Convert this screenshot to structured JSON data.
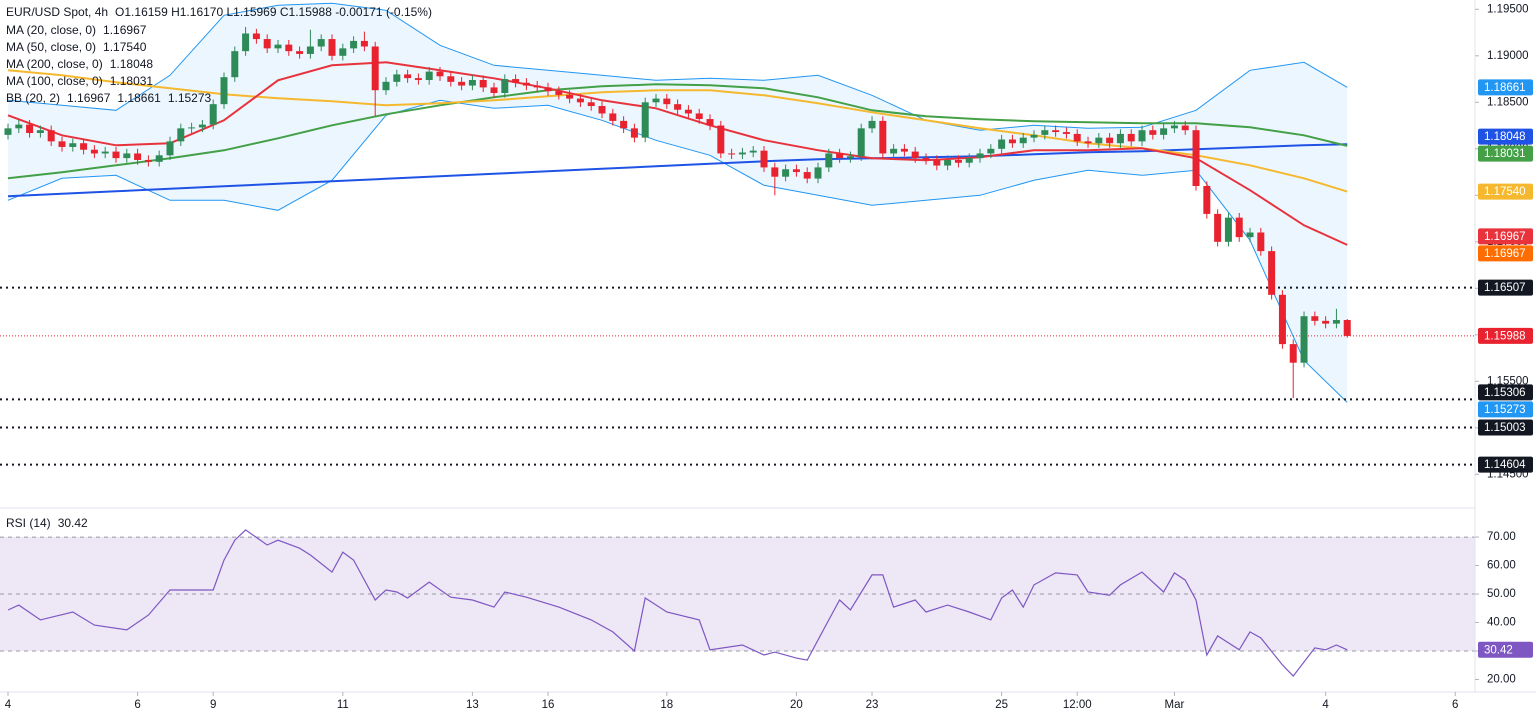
{
  "chart_data": {
    "type": "candlestick",
    "header": {
      "symbol": "EUR/USD Spot, 4h",
      "ohlc": "O1.16159  H1.16170  L1.15969  C1.15988  -0.00171 (-0.15%)"
    },
    "xlim": [
      -0.74,
      135.83
    ],
    "xticks": [
      {
        "value": 0,
        "label": "4"
      },
      {
        "value": 12,
        "label": "6"
      },
      {
        "value": 19,
        "label": "9"
      },
      {
        "value": 31,
        "label": "11"
      },
      {
        "value": 43,
        "label": "13"
      },
      {
        "value": 50,
        "label": "16"
      },
      {
        "value": 61,
        "label": "18"
      },
      {
        "value": 73,
        "label": "20"
      },
      {
        "value": 80,
        "label": "23"
      },
      {
        "value": 92,
        "label": "25"
      },
      {
        "value": 99,
        "label": "12:00"
      },
      {
        "value": 108,
        "label": "Mar"
      },
      {
        "value": 122,
        "label": "4"
      },
      {
        "value": 134,
        "label": "6"
      }
    ],
    "ylim": [
      1.1417,
      1.196
    ],
    "yticks": [
      {
        "value": 1.145,
        "label": "1.14500"
      },
      {
        "value": 1.15,
        "label": "1.15000"
      },
      {
        "value": 1.155,
        "label": "1.15500"
      },
      {
        "value": 1.16,
        "label": "1.16000"
      },
      {
        "value": 1.165,
        "label": "1.16500"
      },
      {
        "value": 1.17,
        "label": "1.17000"
      },
      {
        "value": 1.175,
        "label": "1.17500"
      },
      {
        "value": 1.18,
        "label": "1.18000"
      },
      {
        "value": 1.185,
        "label": "1.18500"
      },
      {
        "value": 1.19,
        "label": "1.19000"
      },
      {
        "value": 1.195,
        "label": "1.19500"
      }
    ],
    "candles": {
      "up_color": "#2e8b57",
      "down_color": "#e8232f",
      "open": [
        1.1815,
        1.1822,
        1.1826,
        1.1817,
        1.182,
        1.1808,
        1.1802,
        1.1806,
        1.1799,
        1.1795,
        1.1797,
        1.179,
        1.1795,
        1.1788,
        1.1786,
        1.1793,
        1.1808,
        1.1822,
        1.1823,
        1.1826,
        1.1848,
        1.1877,
        1.1905,
        1.1924,
        1.1918,
        1.1908,
        1.1912,
        1.1905,
        1.1902,
        1.191,
        1.1918,
        1.19,
        1.1908,
        1.1916,
        1.191,
        1.1863,
        1.1872,
        1.188,
        1.1876,
        1.1874,
        1.1883,
        1.1878,
        1.1872,
        1.1868,
        1.1874,
        1.1866,
        1.186,
        1.1875,
        1.1871,
        1.1868,
        1.1866,
        1.1862,
        1.1858,
        1.1854,
        1.185,
        1.1846,
        1.1838,
        1.183,
        1.1822,
        1.1812,
        1.185,
        1.1854,
        1.1848,
        1.1842,
        1.1838,
        1.1832,
        1.1825,
        1.1795,
        1.1794,
        1.1796,
        1.1798,
        1.178,
        1.177,
        1.1778,
        1.1775,
        1.1768,
        1.178,
        1.1795,
        1.179,
        1.1792,
        1.1822,
        1.183,
        1.1795,
        1.18,
        1.1797,
        1.179,
        1.1788,
        1.1782,
        1.1788,
        1.1785,
        1.179,
        1.1795,
        1.18,
        1.181,
        1.1806,
        1.1812,
        1.1815,
        1.182,
        1.1818,
        1.1816,
        1.1808,
        1.1806,
        1.1812,
        1.1806,
        1.1816,
        1.1808,
        1.182,
        1.1815,
        1.1822,
        1.1825,
        1.182,
        1.176,
        1.173,
        1.17,
        1.1726,
        1.1705,
        1.171,
        1.169,
        1.1643,
        1.159,
        1.157,
        1.162,
        1.1615,
        1.1612,
        1.16159
      ],
      "high": [
        1.1827,
        1.1831,
        1.1831,
        1.1825,
        1.1825,
        1.1813,
        1.1811,
        1.1811,
        1.1804,
        1.1802,
        1.1802,
        1.18,
        1.18,
        1.1793,
        1.1798,
        1.1813,
        1.1827,
        1.1828,
        1.1831,
        1.1853,
        1.1882,
        1.191,
        1.1931,
        1.1929,
        1.1923,
        1.1917,
        1.1917,
        1.191,
        1.1928,
        1.1923,
        1.1923,
        1.1913,
        1.1921,
        1.1926,
        1.1915,
        1.1877,
        1.1885,
        1.1885,
        1.1881,
        1.1888,
        1.1888,
        1.1883,
        1.1877,
        1.1879,
        1.1879,
        1.1871,
        1.188,
        1.188,
        1.1876,
        1.1873,
        1.1871,
        1.1867,
        1.1863,
        1.1859,
        1.1855,
        1.1851,
        1.1843,
        1.1835,
        1.1827,
        1.1855,
        1.1859,
        1.1859,
        1.1853,
        1.1847,
        1.1843,
        1.1837,
        1.183,
        1.18,
        1.1801,
        1.1803,
        1.1803,
        1.1785,
        1.1783,
        1.1783,
        1.178,
        1.1785,
        1.18,
        1.18,
        1.1797,
        1.1827,
        1.1835,
        1.1835,
        1.1805,
        1.1805,
        1.1802,
        1.1795,
        1.1793,
        1.1793,
        1.1793,
        1.1795,
        1.18,
        1.1805,
        1.1815,
        1.1815,
        1.1817,
        1.182,
        1.1825,
        1.1825,
        1.1823,
        1.1821,
        1.1813,
        1.1817,
        1.1817,
        1.1821,
        1.1821,
        1.1825,
        1.1825,
        1.1827,
        1.183,
        1.183,
        1.1825,
        1.1765,
        1.1735,
        1.1731,
        1.1731,
        1.1715,
        1.1715,
        1.1695,
        1.1648,
        1.1595,
        1.1625,
        1.1625,
        1.162,
        1.1628,
        1.1617
      ],
      "low": [
        1.181,
        1.1817,
        1.1812,
        1.1812,
        1.1803,
        1.1797,
        1.1797,
        1.1794,
        1.179,
        1.179,
        1.1785,
        1.1785,
        1.1783,
        1.1781,
        1.1781,
        1.1788,
        1.1803,
        1.1817,
        1.1818,
        1.1821,
        1.1843,
        1.1872,
        1.19,
        1.1913,
        1.1903,
        1.1903,
        1.19,
        1.1897,
        1.1897,
        1.1905,
        1.1895,
        1.1895,
        1.1903,
        1.1905,
        1.1835,
        1.1858,
        1.1867,
        1.1871,
        1.1869,
        1.1869,
        1.1873,
        1.1867,
        1.1863,
        1.1863,
        1.1861,
        1.1855,
        1.1855,
        1.1866,
        1.1863,
        1.1861,
        1.1857,
        1.1853,
        1.1849,
        1.1845,
        1.1841,
        1.1833,
        1.1825,
        1.1817,
        1.1807,
        1.1807,
        1.1845,
        1.1843,
        1.1837,
        1.1833,
        1.1827,
        1.182,
        1.179,
        1.1789,
        1.1789,
        1.1791,
        1.1775,
        1.175,
        1.1765,
        1.177,
        1.1763,
        1.1763,
        1.1775,
        1.1785,
        1.1785,
        1.1787,
        1.1817,
        1.179,
        1.179,
        1.1792,
        1.1785,
        1.1783,
        1.1777,
        1.1777,
        1.178,
        1.178,
        1.1785,
        1.179,
        1.1795,
        1.1801,
        1.1801,
        1.1807,
        1.181,
        1.1813,
        1.1811,
        1.1803,
        1.1801,
        1.1801,
        1.1801,
        1.1801,
        1.1803,
        1.1803,
        1.181,
        1.181,
        1.1817,
        1.1815,
        1.1755,
        1.1725,
        1.1695,
        1.1695,
        1.17,
        1.17,
        1.1685,
        1.1638,
        1.1585,
        1.1532,
        1.1565,
        1.161,
        1.1607,
        1.1607,
        1.15969
      ],
      "close": [
        1.1822,
        1.1826,
        1.1817,
        1.182,
        1.1808,
        1.1802,
        1.1806,
        1.1799,
        1.1795,
        1.1797,
        1.179,
        1.1795,
        1.1788,
        1.1786,
        1.1793,
        1.1808,
        1.1822,
        1.1823,
        1.1826,
        1.1848,
        1.1877,
        1.1905,
        1.1924,
        1.1918,
        1.1908,
        1.1912,
        1.1905,
        1.1902,
        1.191,
        1.1918,
        1.19,
        1.1908,
        1.1916,
        1.191,
        1.1863,
        1.1872,
        1.188,
        1.1876,
        1.1874,
        1.1883,
        1.1878,
        1.1872,
        1.1868,
        1.1874,
        1.1866,
        1.186,
        1.1875,
        1.1871,
        1.1868,
        1.1866,
        1.1862,
        1.1858,
        1.1854,
        1.185,
        1.1846,
        1.1838,
        1.183,
        1.1822,
        1.1812,
        1.185,
        1.1854,
        1.1848,
        1.1842,
        1.1838,
        1.1832,
        1.1825,
        1.1795,
        1.1794,
        1.1796,
        1.1798,
        1.178,
        1.177,
        1.1778,
        1.1775,
        1.1768,
        1.178,
        1.1795,
        1.179,
        1.1792,
        1.1822,
        1.183,
        1.1795,
        1.18,
        1.1797,
        1.179,
        1.1788,
        1.1782,
        1.1788,
        1.1785,
        1.179,
        1.1795,
        1.18,
        1.181,
        1.1806,
        1.1812,
        1.1815,
        1.182,
        1.1818,
        1.1816,
        1.1808,
        1.1806,
        1.1812,
        1.1806,
        1.1816,
        1.1808,
        1.182,
        1.1815,
        1.1822,
        1.1825,
        1.182,
        1.176,
        1.173,
        1.17,
        1.1726,
        1.1705,
        1.171,
        1.169,
        1.1643,
        1.159,
        1.157,
        1.162,
        1.1615,
        1.1612,
        1.16159,
        1.15988
      ]
    },
    "overlays": [
      {
        "name": "MA (20, close, 0)",
        "color": "#e8323c",
        "last": {
          "value": 1.16967,
          "label": "1.16967"
        },
        "x": [
          0,
          5,
          10,
          15,
          20,
          25,
          30,
          35,
          40,
          45,
          50,
          55,
          60,
          65,
          70,
          75,
          80,
          85,
          90,
          95,
          100,
          105,
          110,
          115,
          120,
          124
        ],
        "values": [
          1.1836,
          1.18145,
          1.18038,
          1.18059,
          1.18306,
          1.18737,
          1.18898,
          1.1893,
          1.18844,
          1.18758,
          1.18651,
          1.18522,
          1.18436,
          1.18253,
          1.18092,
          1.17985,
          1.17899,
          1.17877,
          1.17909,
          1.17985,
          1.17985,
          1.18005,
          1.17899,
          1.17555,
          1.17177,
          1.16967
        ]
      },
      {
        "name": "MA (50, close, 0)",
        "color": "#f5b82e",
        "last": {
          "value": 1.1754,
          "label": "1.17540"
        },
        "x": [
          0,
          5,
          10,
          15,
          20,
          25,
          30,
          35,
          40,
          45,
          50,
          55,
          60,
          65,
          70,
          75,
          80,
          85,
          90,
          95,
          100,
          105,
          110,
          115,
          120,
          124
        ],
        "values": [
          1.18844,
          1.1879,
          1.18715,
          1.18651,
          1.18586,
          1.18543,
          1.18511,
          1.18468,
          1.18489,
          1.18522,
          1.18565,
          1.18608,
          1.18629,
          1.18629,
          1.18575,
          1.18489,
          1.18392,
          1.18306,
          1.1822,
          1.18145,
          1.18059,
          1.18005,
          1.1793,
          1.17823,
          1.17683,
          1.1754
        ]
      },
      {
        "name": "MA (200, close, 0)",
        "color": "#1e53e5",
        "last": {
          "value": 1.18048,
          "label": "1.18048"
        },
        "x": [
          0,
          5,
          10,
          15,
          20,
          25,
          30,
          35,
          40,
          45,
          50,
          55,
          60,
          65,
          70,
          75,
          80,
          85,
          90,
          95,
          100,
          105,
          110,
          115,
          120,
          124
        ],
        "values": [
          1.17489,
          1.17516,
          1.17543,
          1.1757,
          1.17597,
          1.17624,
          1.17651,
          1.17677,
          1.17704,
          1.17731,
          1.17758,
          1.17785,
          1.17812,
          1.17839,
          1.17866,
          1.17887,
          1.17898,
          1.17909,
          1.17919,
          1.17941,
          1.17962,
          1.17973,
          1.17995,
          1.18016,
          1.18038,
          1.18048
        ]
      },
      {
        "name": "MA (100, close, 0)",
        "color": "#43a047",
        "last": {
          "value": 1.18031,
          "label": "1.18031"
        },
        "x": [
          0,
          5,
          10,
          15,
          20,
          25,
          30,
          35,
          40,
          45,
          50,
          55,
          60,
          65,
          70,
          75,
          80,
          85,
          90,
          95,
          100,
          105,
          110,
          115,
          120,
          124
        ],
        "values": [
          1.17683,
          1.17747,
          1.17823,
          1.17898,
          1.17984,
          1.18113,
          1.18253,
          1.18371,
          1.18468,
          1.18554,
          1.18629,
          1.18672,
          1.18694,
          1.18683,
          1.18651,
          1.18554,
          1.18414,
          1.18349,
          1.18317,
          1.18296,
          1.18285,
          1.18274,
          1.18274,
          1.18231,
          1.18145,
          1.18031
        ]
      }
    ],
    "bb": {
      "name": "BB (20, 2)",
      "basis_color": "#ff6d00",
      "band_color": "#2196f3",
      "fill": "#e3f2fd",
      "basis_last": {
        "value": 1.16967,
        "label": "1.16967"
      },
      "upper_last": {
        "value": 1.18661,
        "label": "1.18661"
      },
      "lower_last": {
        "value": 1.15273,
        "label": "1.15273"
      },
      "x": [
        0,
        5,
        10,
        15,
        20,
        25,
        30,
        35,
        40,
        45,
        50,
        55,
        60,
        65,
        70,
        75,
        80,
        85,
        90,
        95,
        100,
        105,
        110,
        115,
        120,
        124
      ],
      "upper": [
        1.18522,
        1.18468,
        1.18414,
        1.1879,
        1.19435,
        1.19543,
        1.19565,
        1.19489,
        1.19113,
        1.18898,
        1.18844,
        1.1879,
        1.18737,
        1.18758,
        1.18737,
        1.1879,
        1.18575,
        1.18306,
        1.18199,
        1.18253,
        1.1822,
        1.18231,
        1.18414,
        1.18844,
        1.1893,
        1.18661
      ],
      "lower": [
        1.17446,
        1.17683,
        1.17715,
        1.17446,
        1.17446,
        1.17339,
        1.17661,
        1.1836,
        1.18522,
        1.18435,
        1.18468,
        1.18306,
        1.18091,
        1.1793,
        1.17608,
        1.175,
        1.17392,
        1.17446,
        1.175,
        1.17661,
        1.17769,
        1.17715,
        1.17769,
        1.17016,
        1.15726,
        1.15273
      ]
    },
    "levels": {
      "color": "#131722",
      "values": [
        1.16507,
        1.15306,
        1.15003,
        1.14604
      ]
    },
    "rsi": {
      "type": "line",
      "name": "RSI (14)",
      "color": "#7e57c2",
      "band_fill": "#ede7f6",
      "ylim": [
        15.6,
        78.8
      ],
      "band": [
        30,
        70
      ],
      "midline": 50,
      "yticks": [
        {
          "value": 20,
          "label": "20.00"
        },
        {
          "value": 30,
          "label": "30.00"
        },
        {
          "value": 40,
          "label": "40.00"
        },
        {
          "value": 50,
          "label": "50.00"
        },
        {
          "value": 60,
          "label": "60.00"
        },
        {
          "value": 70,
          "label": "70.00"
        }
      ],
      "x": [
        0,
        1,
        3,
        6,
        8,
        11,
        13,
        15,
        17,
        19,
        20,
        21,
        22,
        24,
        25,
        27,
        28,
        30,
        31,
        32,
        34,
        35,
        36,
        37,
        39,
        41,
        43,
        45,
        46,
        48,
        51,
        54,
        56,
        58,
        59,
        61,
        64,
        65,
        68,
        70,
        71,
        73,
        74,
        76,
        77,
        78,
        80,
        81,
        82,
        84,
        85,
        87,
        89,
        91,
        92,
        93,
        94,
        95,
        97,
        99,
        100,
        102,
        103,
        105,
        107,
        108,
        109,
        110,
        111,
        112,
        114,
        115,
        116,
        118,
        119,
        121,
        122,
        123,
        124
      ],
      "values": [
        44.4,
        46.1,
        40.9,
        43.7,
        39.1,
        37.4,
        42.6,
        51.4,
        51.4,
        51.4,
        61.9,
        68.9,
        72.5,
        67.2,
        68.9,
        66.1,
        63.7,
        57.7,
        64.7,
        61.9,
        47.9,
        51.4,
        50.7,
        48.6,
        54.2,
        48.9,
        47.9,
        45.4,
        50.7,
        48.9,
        45.4,
        40.9,
        36.7,
        30.0,
        48.6,
        43.7,
        40.9,
        30.4,
        32.1,
        28.6,
        29.6,
        27.5,
        26.8,
        40.9,
        47.9,
        44.4,
        56.7,
        56.7,
        45.4,
        47.9,
        43.7,
        46.1,
        43.7,
        40.9,
        48.6,
        51.4,
        45.4,
        53.2,
        57.4,
        56.7,
        50.7,
        49.6,
        53.2,
        57.7,
        50.7,
        57.4,
        54.9,
        47.9,
        28.6,
        35.3,
        30.4,
        36.7,
        34.6,
        25.1,
        21.2,
        31.1,
        30.4,
        32.1,
        30.42
      ]
    }
  }
}
